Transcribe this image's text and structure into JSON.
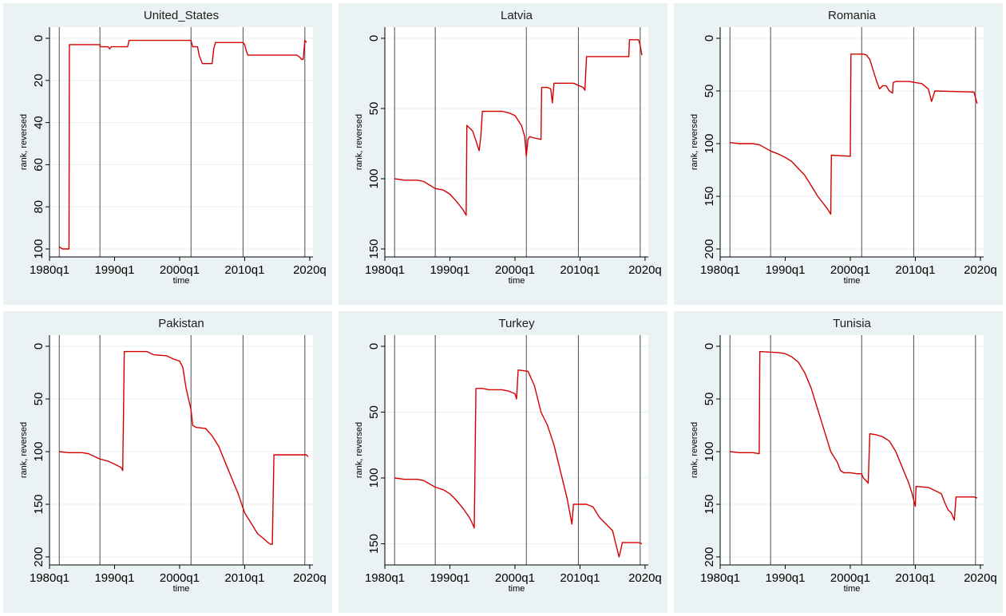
{
  "figure": {
    "xlabel": "time",
    "ylabel": "rank, reversed",
    "line_color": "#d40000",
    "background_color": "#eaf2f3"
  },
  "chart_data": [
    {
      "type": "line",
      "title": "United_States",
      "xlabel": "time",
      "ylabel": "rank, reversed",
      "xlim": [
        1980.0,
        2020.5
      ],
      "xticks": [
        "1980q1",
        "1990q1",
        "2000q1",
        "2010q1",
        "2020q"
      ],
      "ylim": [
        0,
        100
      ],
      "y_reversed": true,
      "yticks": [
        "0",
        "20",
        "40",
        "60",
        "80",
        "100"
      ],
      "vlines": [
        1981.5,
        1987.75,
        2001.75,
        2009.75,
        2019.25
      ],
      "series": [
        {
          "x": [
            1981.5,
            1982.0,
            1982.5,
            1982.75,
            1983.0,
            1983.05,
            1987.75,
            1987.8,
            1989.0,
            1989.25,
            1989.5,
            1992.0,
            1992.25,
            1995.0,
            2001.75,
            2002.0,
            2002.75,
            2003.0,
            2003.5,
            2003.75,
            2005.0,
            2005.25,
            2005.5,
            2009.75,
            2010.0,
            2010.25,
            2010.5,
            2015.0,
            2017.0,
            2017.5,
            2018.0,
            2018.5,
            2018.75,
            2019.0,
            2019.25,
            2019.5
          ],
          "y": [
            99,
            100,
            100,
            100,
            100,
            3,
            3,
            4,
            4,
            5,
            4,
            4,
            1,
            1,
            1,
            4,
            4,
            8,
            12,
            12,
            12,
            5,
            2,
            2,
            3,
            6,
            8,
            8,
            8,
            8,
            8,
            9,
            10,
            10,
            1,
            2
          ]
        }
      ]
    },
    {
      "type": "line",
      "title": "Latvia",
      "xlabel": "time",
      "ylabel": "rank, reversed",
      "xlim": [
        1980.0,
        2020.5
      ],
      "xticks": [
        "1980q1",
        "1990q1",
        "2000q1",
        "2010q1",
        "2020q"
      ],
      "ylim": [
        0,
        150
      ],
      "y_reversed": true,
      "yticks": [
        "0",
        "50",
        "100",
        "150"
      ],
      "vlines": [
        1981.5,
        1987.75,
        2001.75,
        2009.75,
        2019.25
      ],
      "series": [
        {
          "x": [
            1981.5,
            1983.0,
            1985.0,
            1986.0,
            1987.75,
            1989.0,
            1990.0,
            1991.0,
            1992.0,
            1992.5,
            1992.6,
            1993.5,
            1994.0,
            1994.5,
            1994.75,
            1995.0,
            1998.0,
            1999.0,
            1999.5,
            2000.0,
            2001.0,
            2001.5,
            2001.75,
            2002.0,
            2002.25,
            2003.0,
            2004.0,
            2004.1,
            2005.0,
            2005.5,
            2005.75,
            2006.0,
            2008.5,
            2009.0,
            2010.0,
            2010.5,
            2010.75,
            2011.0,
            2017.5,
            2017.6,
            2018.5,
            2019.0,
            2019.25,
            2019.5
          ],
          "y": [
            100,
            101,
            101,
            102,
            107,
            108,
            111,
            116,
            122,
            126,
            62,
            66,
            73,
            80,
            70,
            52,
            52,
            53,
            54,
            55,
            62,
            70,
            84,
            72,
            70,
            71,
            72,
            35,
            35,
            36,
            46,
            32,
            32,
            32,
            34,
            35,
            37,
            13,
            13,
            1,
            1,
            1,
            5,
            12
          ]
        }
      ]
    },
    {
      "type": "line",
      "title": "Romania",
      "xlabel": "time",
      "ylabel": "rank, reversed",
      "xlim": [
        1980.0,
        2020.5
      ],
      "xticks": [
        "1980q1",
        "1990q1",
        "2000q1",
        "2010q1",
        "2020q"
      ],
      "ylim": [
        0,
        200
      ],
      "y_reversed": true,
      "yticks": [
        "0",
        "50",
        "100",
        "150",
        "200"
      ],
      "vlines": [
        1981.5,
        1987.75,
        2001.75,
        2009.75,
        2019.25
      ],
      "series": [
        {
          "x": [
            1981.5,
            1983.0,
            1985.0,
            1986.0,
            1987.75,
            1989.0,
            1990.0,
            1991.0,
            1993.0,
            1994.0,
            1995.0,
            1996.0,
            1996.5,
            1997.0,
            1997.1,
            2000.0,
            2000.1,
            2002.0,
            2002.5,
            2003.0,
            2003.5,
            2004.0,
            2004.5,
            2005.0,
            2005.5,
            2006.0,
            2006.5,
            2006.6,
            2007.0,
            2009.0,
            2010.0,
            2011.0,
            2012.0,
            2012.5,
            2012.6,
            2013.0,
            2019.0,
            2019.5
          ],
          "y": [
            99,
            100,
            100,
            101,
            107,
            110,
            113,
            117,
            130,
            140,
            150,
            158,
            162,
            167,
            111,
            112,
            15,
            15,
            16,
            20,
            30,
            40,
            48,
            45,
            45,
            50,
            52,
            42,
            41,
            41,
            42,
            43,
            48,
            60,
            58,
            50,
            51,
            62
          ]
        }
      ]
    },
    {
      "type": "line",
      "title": "Pakistan",
      "xlabel": "time",
      "ylabel": "rank, reversed",
      "xlim": [
        1980.0,
        2020.5
      ],
      "xticks": [
        "1980q1",
        "1990q1",
        "2000q1",
        "2010q1",
        "2020q"
      ],
      "ylim": [
        0,
        200
      ],
      "y_reversed": true,
      "yticks": [
        "0",
        "50",
        "100",
        "150",
        "200"
      ],
      "vlines": [
        1981.5,
        1987.75,
        2001.75,
        2009.75,
        2019.25
      ],
      "series": [
        {
          "x": [
            1981.5,
            1983.0,
            1985.0,
            1986.0,
            1987.75,
            1989.0,
            1990.0,
            1991.0,
            1991.25,
            1991.5,
            1995.0,
            1996.0,
            1998.0,
            1999.0,
            2000.0,
            2000.5,
            2001.0,
            2001.75,
            2002.0,
            2002.5,
            2004.0,
            2005.0,
            2006.0,
            2007.0,
            2008.0,
            2009.0,
            2010.0,
            2011.0,
            2012.0,
            2013.0,
            2013.5,
            2014.0,
            2014.25,
            2014.5,
            2019.5,
            2019.75
          ],
          "y": [
            100,
            101,
            101,
            102,
            107,
            109,
            112,
            115,
            118,
            5,
            5,
            8,
            9,
            12,
            14,
            20,
            40,
            60,
            75,
            77,
            78,
            85,
            95,
            110,
            125,
            140,
            158,
            168,
            178,
            183,
            186,
            188,
            188,
            103,
            103,
            105
          ]
        }
      ]
    },
    {
      "type": "line",
      "title": "Turkey",
      "xlabel": "time",
      "ylabel": "rank, reversed",
      "xlim": [
        1980.0,
        2020.5
      ],
      "xticks": [
        "1980q1",
        "1990q1",
        "2000q1",
        "2010q1",
        "2020q"
      ],
      "ylim": [
        0,
        160
      ],
      "y_reversed": true,
      "yticks": [
        "0",
        "50",
        "100",
        "150"
      ],
      "vlines": [
        1981.5,
        1987.75,
        2001.75,
        2009.75,
        2019.25
      ],
      "series": [
        {
          "x": [
            1981.5,
            1983.0,
            1985.0,
            1986.0,
            1987.75,
            1989.0,
            1990.0,
            1991.0,
            1992.0,
            1993.0,
            1993.5,
            1993.75,
            1994.0,
            1995.0,
            1996.0,
            1998.0,
            1999.0,
            2000.0,
            2000.25,
            2000.5,
            2002.0,
            2003.0,
            2004.0,
            2005.0,
            2006.0,
            2007.0,
            2008.0,
            2008.5,
            2008.75,
            2009.0,
            2011.0,
            2012.0,
            2013.0,
            2014.0,
            2015.0,
            2015.5,
            2016.0,
            2016.25,
            2016.5,
            2019.0,
            2019.5
          ],
          "y": [
            100,
            101,
            101,
            102,
            107,
            109,
            112,
            117,
            123,
            130,
            135,
            138,
            32,
            32,
            33,
            33,
            34,
            36,
            40,
            18,
            19,
            30,
            50,
            60,
            75,
            95,
            115,
            128,
            135,
            120,
            120,
            122,
            130,
            135,
            140,
            150,
            160,
            155,
            149,
            149,
            150
          ]
        }
      ]
    },
    {
      "type": "line",
      "title": "Tunisia",
      "xlabel": "time",
      "ylabel": "rank, reversed",
      "xlim": [
        1980.0,
        2020.5
      ],
      "xticks": [
        "1980q1",
        "1990q1",
        "2000q1",
        "2010q1",
        "2020q"
      ],
      "ylim": [
        0,
        200
      ],
      "y_reversed": true,
      "yticks": [
        "0",
        "50",
        "100",
        "150",
        "200"
      ],
      "vlines": [
        1981.5,
        1987.75,
        2001.75,
        2009.75,
        2019.25
      ],
      "series": [
        {
          "x": [
            1981.5,
            1983.0,
            1985.0,
            1986.0,
            1986.1,
            1989.0,
            1990.0,
            1991.0,
            1992.0,
            1993.0,
            1994.0,
            1995.0,
            1996.0,
            1997.0,
            1998.0,
            1998.5,
            1999.0,
            2000.0,
            2001.0,
            2001.75,
            2002.0,
            2002.5,
            2002.75,
            2003.0,
            2004.0,
            2005.0,
            2006.0,
            2007.0,
            2008.0,
            2009.0,
            2009.5,
            2010.0,
            2010.1,
            2012.0,
            2013.0,
            2014.0,
            2014.5,
            2015.0,
            2015.5,
            2016.0,
            2016.25,
            2016.5,
            2019.0,
            2019.5
          ],
          "y": [
            100,
            101,
            101,
            102,
            5,
            6,
            7,
            10,
            15,
            25,
            40,
            60,
            80,
            100,
            110,
            118,
            120,
            120,
            121,
            121,
            125,
            128,
            130,
            83,
            84,
            86,
            90,
            100,
            115,
            130,
            140,
            152,
            133,
            134,
            137,
            140,
            148,
            155,
            158,
            165,
            143,
            143,
            143,
            144
          ]
        }
      ]
    }
  ]
}
